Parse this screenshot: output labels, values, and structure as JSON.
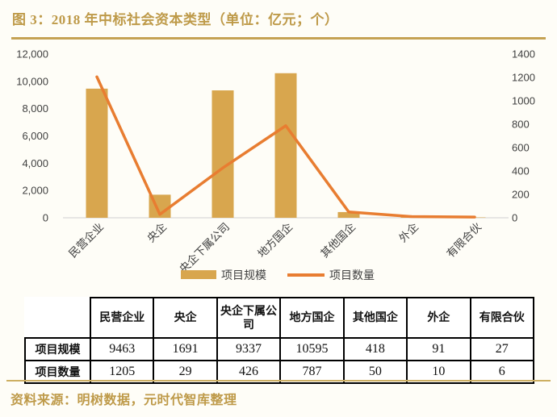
{
  "title": "图 3：2018 年中标社会资本类型（单位：亿元；个）",
  "source_note": "资料来源：明树数据，元时代智库整理",
  "colors": {
    "gold_text": "#BE9A49",
    "rule_gold": "#C5A253",
    "bar": "#D8A64E",
    "line": "#E87D31",
    "axis_text": "#404040",
    "axis_line": "#D9D9D9",
    "plot_bg": "#FFFFFF"
  },
  "chart_data": {
    "type": "bar",
    "subtype": "bar+line-combo",
    "categories": [
      "民营企业",
      "央企",
      "央企下属公司",
      "地方国企",
      "其他国企",
      "外企",
      "有限合伙"
    ],
    "series": [
      {
        "name": "项目规模",
        "type": "bar",
        "axis": "left",
        "values": [
          9463,
          1691,
          9337,
          10595,
          418,
          91,
          27
        ]
      },
      {
        "name": "项目数量",
        "type": "line",
        "axis": "right",
        "values": [
          1205,
          29,
          426,
          787,
          50,
          10,
          6
        ]
      }
    ],
    "left_axis": {
      "min": 0,
      "max": 12000,
      "step": 2000,
      "ticks": [
        "12,000",
        "10,000",
        "8,000",
        "6,000",
        "4,000",
        "2,000",
        "0"
      ]
    },
    "right_axis": {
      "min": 0,
      "max": 1400,
      "step": 200,
      "ticks": [
        "1400",
        "1200",
        "1000",
        "800",
        "600",
        "400",
        "200",
        "0"
      ]
    },
    "grid": false,
    "legend_position": "bottom",
    "x_label_rotation_deg": 45
  },
  "table": {
    "col_headers": [
      "",
      "民营企业",
      "央企",
      "央企下属公司",
      "地方国企",
      "其他国企",
      "外企",
      "有限合伙"
    ],
    "rows": [
      {
        "label": "项目规模",
        "values": [
          "9463",
          "1691",
          "9337",
          "10595",
          "418",
          "91",
          "27"
        ]
      },
      {
        "label": "项目数量",
        "values": [
          "1205",
          "29",
          "426",
          "787",
          "50",
          "10",
          "6"
        ]
      }
    ]
  }
}
